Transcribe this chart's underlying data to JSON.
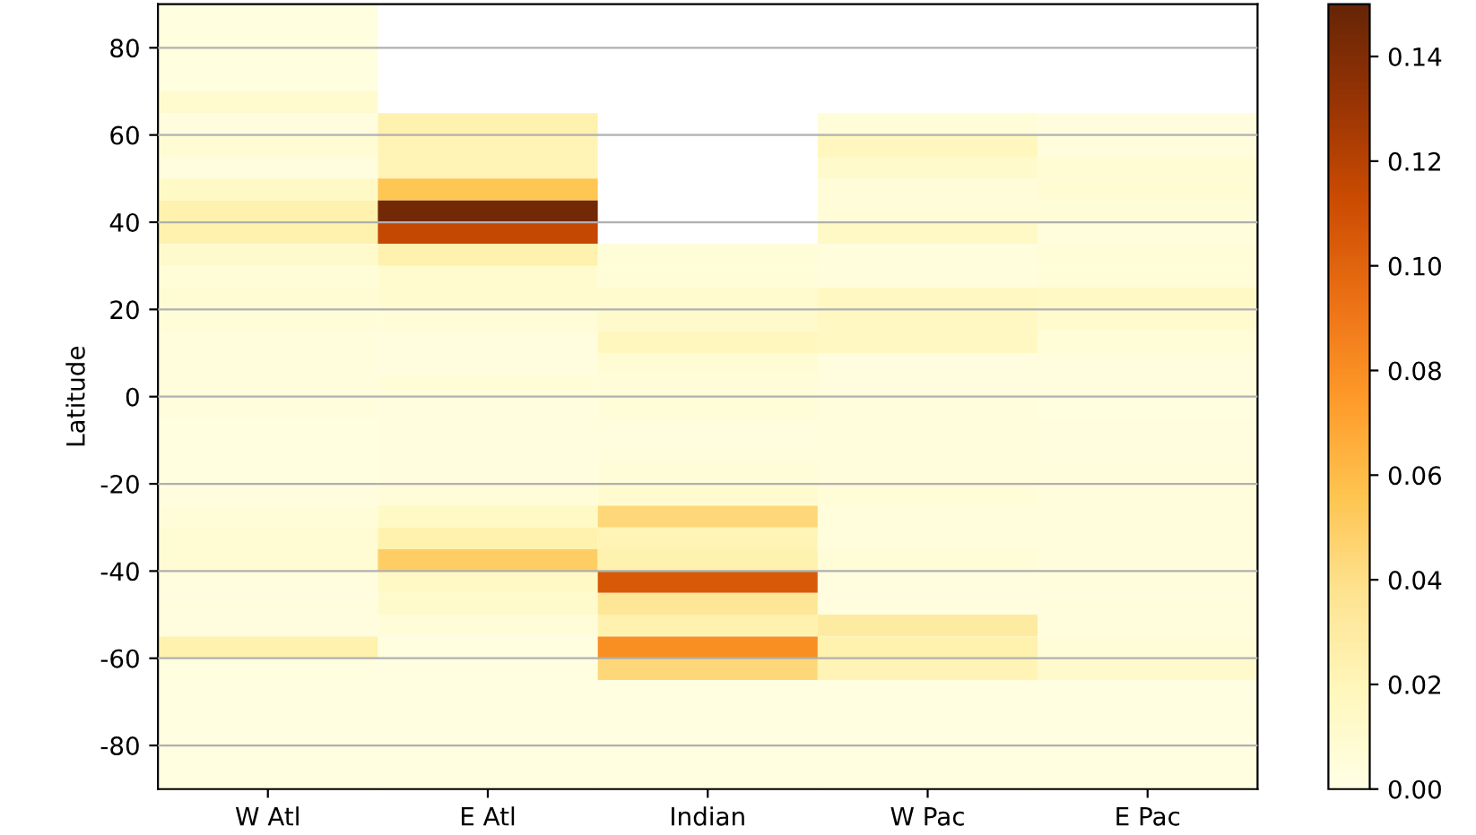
{
  "chart_data": {
    "type": "heatmap",
    "ylabel": "Latitude",
    "categories": [
      "W Atl",
      "E Atl",
      "Indian",
      "W Pac",
      "E Pac"
    ],
    "ylim": [
      -90,
      90
    ],
    "yticks": [
      -80,
      -60,
      -40,
      -20,
      0,
      20,
      40,
      60,
      80
    ],
    "clim": [
      0,
      0.15
    ],
    "cticks": [
      {
        "value": 0,
        "label": "0.00"
      },
      0.02,
      0.04,
      0.06,
      0.08,
      {
        "value": 0.1,
        "label": "0.10"
      },
      0.12,
      0.14
    ],
    "grid": "y",
    "cells": [
      [
        0.003,
        null,
        null,
        null,
        null
      ],
      [
        0.003,
        null,
        null,
        null,
        null
      ],
      [
        0.003,
        null,
        null,
        null,
        null
      ],
      [
        0.003,
        null,
        null,
        null,
        null
      ],
      [
        0.01,
        null,
        null,
        null,
        null
      ],
      [
        0.004,
        0.025,
        null,
        0.006,
        0.004
      ],
      [
        0.008,
        0.022,
        null,
        0.018,
        0.005
      ],
      [
        0.004,
        0.022,
        null,
        0.012,
        0.008
      ],
      [
        0.015,
        0.055,
        null,
        0.007,
        0.009
      ],
      [
        0.025,
        0.145,
        null,
        0.007,
        0.006
      ],
      [
        0.025,
        0.115,
        null,
        0.015,
        0.005
      ],
      [
        0.012,
        0.025,
        0.006,
        0.005,
        0.006
      ],
      [
        0.006,
        0.01,
        0.006,
        0.005,
        0.006
      ],
      [
        0.008,
        0.01,
        0.01,
        0.016,
        0.015
      ],
      [
        0.006,
        0.006,
        0.012,
        0.016,
        0.01
      ],
      [
        0.005,
        0.004,
        0.018,
        0.016,
        0.006
      ],
      [
        0.005,
        0.004,
        0.008,
        0.004,
        0.004
      ],
      [
        0.005,
        0.006,
        0.006,
        0.004,
        0.004
      ],
      [
        0.005,
        0.004,
        0.006,
        0.005,
        0.003
      ],
      [
        0.003,
        0.004,
        0.004,
        0.005,
        0.004
      ],
      [
        0.003,
        0.004,
        0.005,
        0.005,
        0.004
      ],
      [
        0.003,
        0.004,
        0.006,
        0.005,
        0.005
      ],
      [
        0.004,
        0.006,
        0.01,
        0.006,
        0.005
      ],
      [
        0.006,
        0.015,
        0.045,
        0.005,
        0.005
      ],
      [
        0.008,
        0.025,
        0.022,
        0.005,
        0.005
      ],
      [
        0.008,
        0.05,
        0.025,
        0.006,
        0.005
      ],
      [
        0.004,
        0.015,
        0.105,
        0.004,
        0.005
      ],
      [
        0.004,
        0.012,
        0.035,
        0.004,
        0.005
      ],
      [
        0.004,
        0.006,
        0.025,
        0.03,
        0.005
      ],
      [
        0.025,
        0.003,
        0.08,
        0.025,
        0.006
      ],
      [
        0.003,
        0.002,
        0.045,
        0.022,
        0.012
      ],
      [
        0.002,
        0.002,
        0.002,
        0.002,
        0.002
      ],
      [
        0.002,
        0.002,
        0.002,
        0.002,
        0.002
      ],
      [
        0.002,
        0.002,
        0.002,
        0.002,
        0.002
      ],
      [
        0.002,
        0.002,
        0.002,
        0.002,
        0.002
      ],
      [
        0.002,
        0.002,
        0.002,
        0.002,
        0.002
      ]
    ]
  }
}
